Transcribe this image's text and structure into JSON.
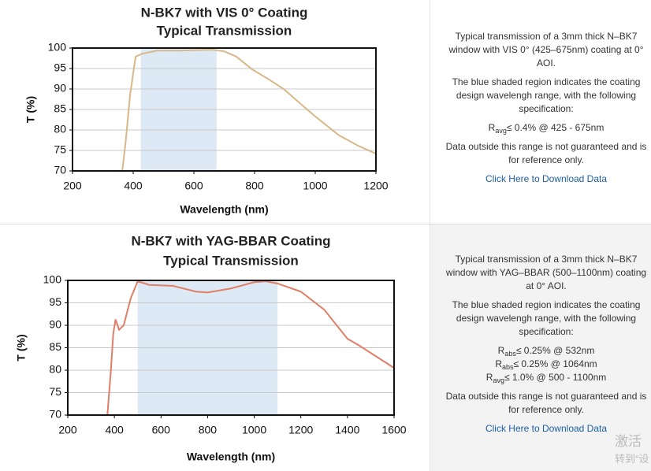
{
  "chart_data": [
    {
      "type": "line",
      "title": "N-BK7 with VIS 0° Coating",
      "subtitle": "Typical Transmission",
      "xlabel": "Wavelength (nm)",
      "ylabel": "T (%)",
      "x": [
        364,
        375,
        390,
        408,
        429,
        480,
        560,
        662,
        700,
        740,
        792,
        850,
        896,
        950,
        1000,
        1078,
        1140,
        1200
      ],
      "values": [
        70,
        77,
        88.7,
        97.9,
        98.6,
        99.4,
        99.4,
        99.6,
        99.2,
        97.9,
        94.8,
        92.2,
        90,
        86.5,
        83.3,
        78.7,
        76.2,
        74.2
      ],
      "color": "#d8b888",
      "shaded_range": [
        425,
        675
      ],
      "shade_color": "#dde9f5",
      "xlim": [
        200,
        1200
      ],
      "xticks": [
        200,
        400,
        600,
        800,
        1000,
        1200
      ],
      "ylim": [
        70,
        100
      ],
      "yticks": [
        70,
        75,
        80,
        85,
        90,
        95,
        100
      ],
      "grid": true
    },
    {
      "type": "line",
      "title": "N-BK7 with YAG-BBAR Coating",
      "subtitle": "Typical Transmission",
      "xlabel": "Wavelength (nm)",
      "ylabel": "T (%)",
      "x": [
        370,
        385,
        395,
        405,
        420,
        440,
        470,
        500,
        550,
        650,
        750,
        800,
        900,
        1000,
        1050,
        1100,
        1200,
        1300,
        1400,
        1450,
        1600
      ],
      "values": [
        70,
        80,
        88,
        91.3,
        89,
        90,
        96,
        99.8,
        99,
        98.8,
        97.5,
        97.3,
        98.2,
        99.6,
        99.8,
        99.3,
        97.5,
        93.5,
        87,
        85.5,
        80.5
      ],
      "color": "#e07e66",
      "shaded_range": [
        500,
        1100
      ],
      "shade_color": "#dde9f5",
      "xlim": [
        200,
        1600
      ],
      "xticks": [
        200,
        400,
        600,
        800,
        1000,
        1200,
        1400,
        1600
      ],
      "ylim": [
        70,
        100
      ],
      "yticks": [
        70,
        75,
        80,
        85,
        90,
        95,
        100
      ],
      "grid": true
    }
  ],
  "panels": [
    {
      "description": "Typical transmission of a 3mm thick N–BK7 window with VIS 0° (425–675nm) coating at 0° AOI.",
      "shading_note": "The blue shaded region indicates the coating design wavelengh range, with the following specification:",
      "specs": [
        {
          "symbol": "R",
          "sub": "avg",
          "text": "≤ 0.4% @ 425 - 675nm"
        }
      ],
      "disclaimer": "Data outside this range is not guaranteed and is for reference only.",
      "link": "Click Here to Download Data"
    },
    {
      "description": "Typical transmission of a 3mm thick N–BK7 window with YAG–BBAR (500–1100nm) coating at 0° AOI.",
      "shading_note": "The blue shaded region indicates the coating design wavelengh range, with the following specification:",
      "specs": [
        {
          "symbol": "R",
          "sub": "abs",
          "text": "≤ 0.25% @ 532nm"
        },
        {
          "symbol": "R",
          "sub": "abs",
          "text": "≤ 0.25% @ 1064nm"
        },
        {
          "symbol": "R",
          "sub": "avg",
          "text": "≤ 1.0% @ 500 - 1100nm"
        }
      ],
      "disclaimer": "Data outside this range is not guaranteed and is for reference only.",
      "link": "Click Here to Download Data"
    }
  ],
  "watermark": [
    "激活",
    "转到“设"
  ]
}
